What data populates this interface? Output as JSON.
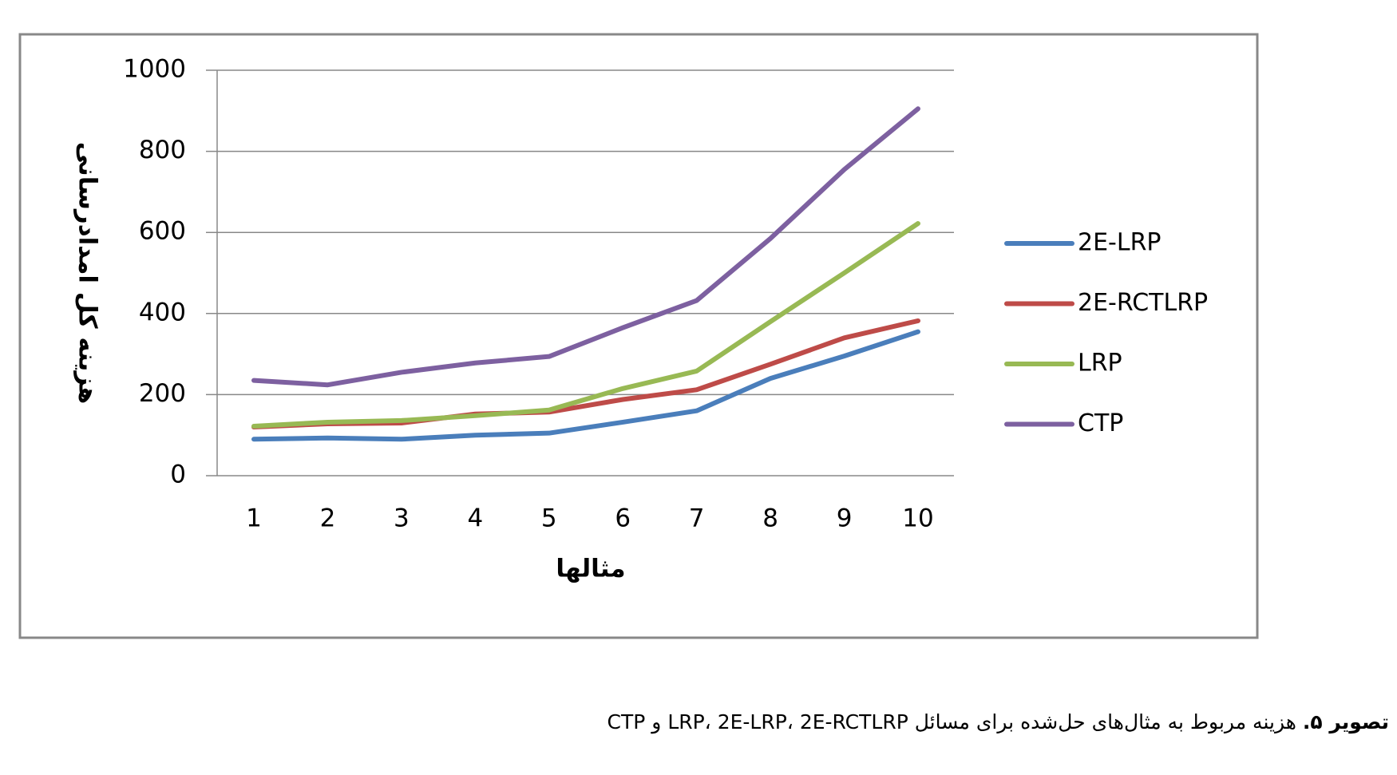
{
  "chart_data": {
    "type": "line",
    "x_label": "مثالها",
    "y_label": "هزینه کل امدادرسانی",
    "categories": [
      "1",
      "2",
      "3",
      "4",
      "5",
      "6",
      "7",
      "8",
      "9",
      "10"
    ],
    "series": [
      {
        "name": "2E-LRP",
        "color": "#4a7ebb",
        "values": [
          90,
          93,
          90,
          100,
          105,
          132,
          160,
          240,
          295,
          355
        ]
      },
      {
        "name": "2E-RCTLRP",
        "color": "#be4b48",
        "values": [
          120,
          128,
          130,
          152,
          157,
          188,
          212,
          275,
          340,
          382
        ]
      },
      {
        "name": "LRP",
        "color": "#98b954",
        "values": [
          122,
          132,
          136,
          148,
          162,
          215,
          258,
          380,
          500,
          622
        ]
      },
      {
        "name": "CTP",
        "color": "#7d60a0",
        "values": [
          235,
          224,
          255,
          278,
          294,
          365,
          432,
          585,
          755,
          905
        ]
      }
    ],
    "ylim": [
      0,
      1000
    ],
    "yticks": [
      0,
      200,
      400,
      600,
      800,
      1000
    ],
    "grid": true
  },
  "caption": {
    "label": "تصویر ۵.",
    "text": "هزینه مربوط به مثال‌های حل‌شده برای مسائل LRP، 2E-LRP، 2E-RCTLRP و CTP"
  }
}
